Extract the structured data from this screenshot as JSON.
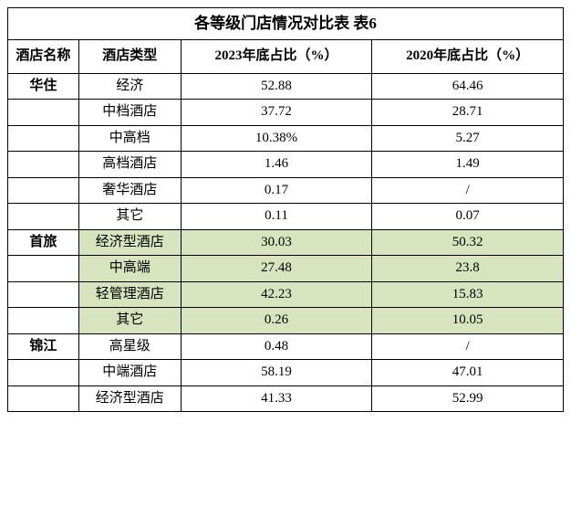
{
  "table": {
    "title": "各等级门店情况对比表      表6",
    "columns": [
      "酒店名称",
      "酒店类型",
      "2023年底占比（%）",
      "2020年底占比（%）"
    ],
    "highlight_color": "#d7e4bd",
    "rows": [
      {
        "brand": "华住",
        "type": "经济",
        "v2023": "52.88",
        "v2020": "64.46",
        "hl": false
      },
      {
        "brand": "",
        "type": "中档酒店",
        "v2023": "37.72",
        "v2020": "28.71",
        "hl": false
      },
      {
        "brand": "",
        "type": "中高档",
        "v2023": "10.38%",
        "v2020": "5.27",
        "hl": false
      },
      {
        "brand": "",
        "type": "高档酒店",
        "v2023": "1.46",
        "v2020": "1.49",
        "hl": false
      },
      {
        "brand": "",
        "type": "奢华酒店",
        "v2023": "0.17",
        "v2020": "/",
        "hl": false
      },
      {
        "brand": "",
        "type": "其它",
        "v2023": "0.11",
        "v2020": "0.07",
        "hl": false
      },
      {
        "brand": "首旅",
        "type": "经济型酒店",
        "v2023": "30.03",
        "v2020": "50.32",
        "hl": true
      },
      {
        "brand": "",
        "type": "中高端",
        "v2023": "27.48",
        "v2020": "23.8",
        "hl": true
      },
      {
        "brand": "",
        "type": "轻管理酒店",
        "v2023": "42.23",
        "v2020": "15.83",
        "hl": true
      },
      {
        "brand": "",
        "type": "其它",
        "v2023": "0.26",
        "v2020": "10.05",
        "hl": true
      },
      {
        "brand": "锦江",
        "type": "高星级",
        "v2023": "0.48",
        "v2020": "/",
        "hl": false
      },
      {
        "brand": "",
        "type": "中端酒店",
        "v2023": "58.19",
        "v2020": "47.01",
        "hl": false
      },
      {
        "brand": "",
        "type": "经济型酒店",
        "v2023": "41.33",
        "v2020": "52.99",
        "hl": false
      }
    ]
  }
}
